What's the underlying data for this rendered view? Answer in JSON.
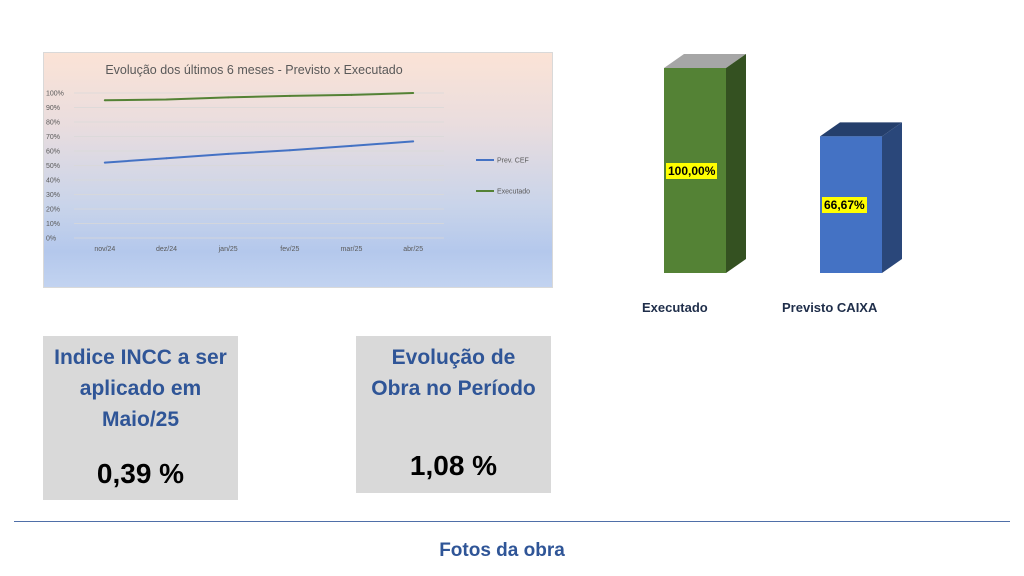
{
  "chart_data": [
    {
      "type": "line",
      "title": "Evolução dos últimos 6 meses - Previsto x Executado",
      "categories": [
        "nov/24",
        "dez/24",
        "jan/25",
        "fev/25",
        "mar/25",
        "abr/25"
      ],
      "y_ticks": [
        "0%",
        "10%",
        "20%",
        "30%",
        "40%",
        "50%",
        "60%",
        "70%",
        "80%",
        "90%",
        "100%"
      ],
      "ylim": [
        0,
        100
      ],
      "grid": true,
      "legend_position": "right",
      "series": [
        {
          "name": "Prev. CEF",
          "color": "#4472c4",
          "values": [
            52,
            55,
            58,
            60.5,
            63.5,
            66.67
          ]
        },
        {
          "name": "Executado",
          "color": "#548235",
          "values": [
            95,
            95.5,
            97,
            98,
            98.7,
            100
          ]
        }
      ]
    },
    {
      "type": "bar",
      "categories": [
        "Executado",
        "Previsto CAIXA"
      ],
      "values": [
        100.0,
        66.67
      ],
      "value_labels": [
        "100,00%",
        "66,67%"
      ],
      "colors": [
        "#548235",
        "#4472c4"
      ],
      "ylim": [
        0,
        100
      ],
      "grid": false
    }
  ],
  "kpis": {
    "incc": {
      "title_lines": [
        "Indice INCC a ser",
        "aplicado em",
        "Maio/25"
      ],
      "value": "0,39 %"
    },
    "evolucao": {
      "title_lines": [
        "Evolução de",
        "Obra no Período"
      ],
      "value": "1,08 %"
    }
  },
  "footer": {
    "title": "Fotos da obra"
  }
}
